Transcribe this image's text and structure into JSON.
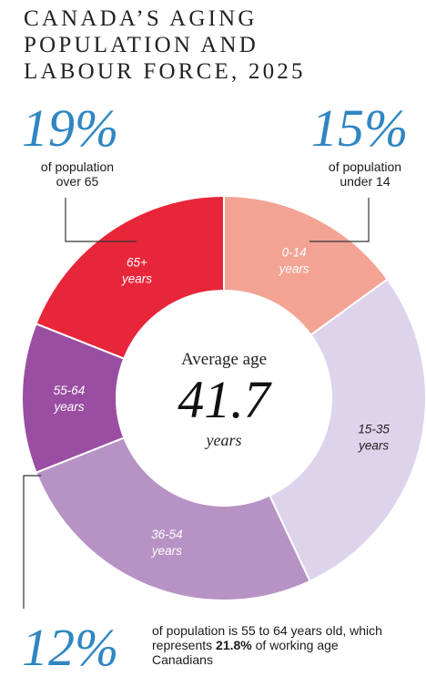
{
  "title_lines": [
    "CANADA’S AGING",
    "POPULATION AND",
    "LABOUR FORCE, 2025"
  ],
  "callouts": {
    "left": {
      "value": "19%",
      "line1": "of population",
      "line2": "over 65"
    },
    "right": {
      "value": "15%",
      "line1": "of population",
      "line2": "under 14"
    },
    "bottom": {
      "value": "12%",
      "text_a": "of population is 55 to 64 years old, which represents ",
      "highlight": "21.8%",
      "text_b": " of working age Canadians"
    }
  },
  "center": {
    "title": "Average age",
    "value": "41.7",
    "unit": "years"
  },
  "colors": {
    "accent_blue": "#2f86c2",
    "seg_0_14": "#f3a394",
    "seg_15_35": "#ddd3eb",
    "seg_36_54": "#b793c5",
    "seg_55_64": "#9a4ea2",
    "seg_65_plus": "#e8263a",
    "leader": "#333333"
  },
  "chart_data": {
    "type": "pie",
    "variant": "donut",
    "title": "CANADA’S AGING POPULATION AND LABOUR FORCE, 2025",
    "center_label": "Average age 41.7 years",
    "slices": [
      {
        "label": "0-14 years",
        "line1": "0-14",
        "line2": "years",
        "value": 15,
        "color": "#f3a394",
        "text": "light"
      },
      {
        "label": "15-35 years",
        "line1": "15-35",
        "line2": "years",
        "value": 28,
        "color": "#ddd3eb",
        "text": "dark"
      },
      {
        "label": "36-54 years",
        "line1": "36-54",
        "line2": "years",
        "value": 26,
        "color": "#b793c5",
        "text": "light"
      },
      {
        "label": "55-64 years",
        "line1": "55-64",
        "line2": "years",
        "value": 12,
        "color": "#9a4ea2",
        "text": "light"
      },
      {
        "label": "65+ years",
        "line1": "65+",
        "line2": "years",
        "value": 19,
        "color": "#e8263a",
        "text": "light"
      }
    ]
  }
}
